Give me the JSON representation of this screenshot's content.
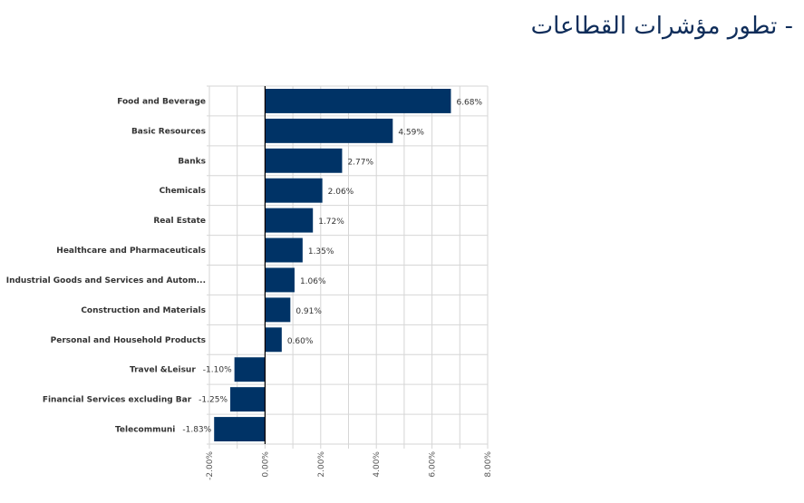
{
  "title": "- تطور مؤشرات القطاعات",
  "chart_data": {
    "type": "bar",
    "orientation": "horizontal",
    "categories": [
      "Food and Beverage",
      "Basic Resources",
      "Banks",
      "Chemicals",
      "Real Estate",
      "Healthcare and Pharmaceuticals",
      "Industrial Goods and Services and Autom...",
      "Construction and Materials",
      "Personal and Household Products",
      "Travel &Leisur",
      "Financial Services excluding Bar",
      "Telecommuni"
    ],
    "values": [
      6.68,
      4.59,
      2.77,
      2.06,
      1.72,
      1.35,
      1.06,
      0.91,
      0.6,
      -1.1,
      -1.25,
      -1.83
    ],
    "data_labels": [
      "6.68%",
      "4.59%",
      "2.77%",
      "2.06%",
      "1.72%",
      "1.35%",
      "1.06%",
      "0.91%",
      "0.60%",
      "-1.10%",
      "-1.25%",
      "-1.83%"
    ],
    "xlim": [
      -2,
      8
    ],
    "xticks": [
      "-2.00%",
      "0.00%",
      "2.00%",
      "4.00%",
      "6.00%",
      "8.00%"
    ],
    "xtick_values": [
      -2,
      0,
      2,
      4,
      6,
      8
    ],
    "grid": true,
    "bar_color": "#003366"
  }
}
